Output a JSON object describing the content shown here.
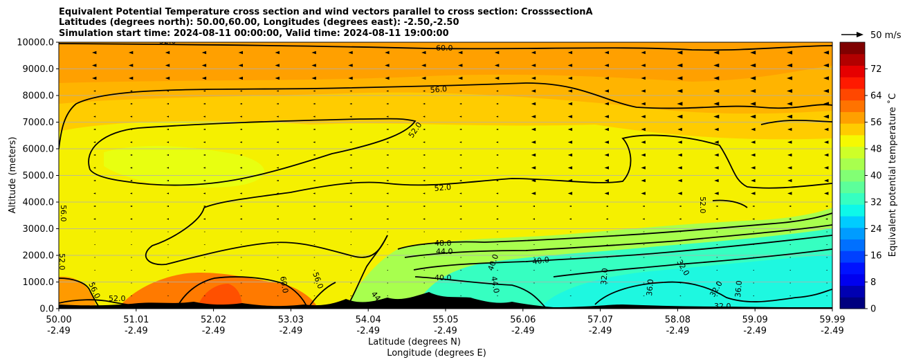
{
  "chart_data": {
    "type": "heatmap",
    "title_lines": [
      "Equivalent Potential Temperature cross section and wind vectors parallel to cross section: CrosssectionA",
      "Latitudes (degrees north): 50.00,60.00, Longitudes (degrees east): -2.50,-2.50",
      "Simulation start time: 2024-08-11 00:00:00, Valid time: 2024-08-11 19:00:00"
    ],
    "xlabel_1": "Latitude (degrees N)",
    "xlabel_2": "Longitude (degrees E)",
    "ylabel": "Altitude (meters)",
    "ylim": [
      0,
      10000
    ],
    "y_ticks": [
      "0.0",
      "1000.0",
      "2000.0",
      "3000.0",
      "4000.0",
      "5000.0",
      "6000.0",
      "7000.0",
      "8000.0",
      "9000.0",
      "10000.0"
    ],
    "x_ticks": [
      {
        "lat": "50.00",
        "lon": "-2.49"
      },
      {
        "lat": "51.01",
        "lon": "-2.49"
      },
      {
        "lat": "52.02",
        "lon": "-2.49"
      },
      {
        "lat": "53.03",
        "lon": "-2.49"
      },
      {
        "lat": "54.04",
        "lon": "-2.49"
      },
      {
        "lat": "55.05",
        "lon": "-2.49"
      },
      {
        "lat": "56.06",
        "lon": "-2.49"
      },
      {
        "lat": "57.07",
        "lon": "-2.49"
      },
      {
        "lat": "58.08",
        "lon": "-2.49"
      },
      {
        "lat": "59.09",
        "lon": "-2.49"
      },
      {
        "lat": "59.99",
        "lon": "-2.49"
      }
    ],
    "grid": "horizontal",
    "colorbar": {
      "label": "Equivalent potential temperature $^\\circ$C",
      "label_display": "Equivalent potential temperature ˚C",
      "range": [
        0,
        80
      ],
      "ticks": [
        "0",
        "8",
        "16",
        "24",
        "32",
        "40",
        "48",
        "56",
        "64",
        "72"
      ],
      "colors": [
        "#00007f",
        "#0000b2",
        "#0000ef",
        "#0012ff",
        "#0040ff",
        "#0070ff",
        "#009cff",
        "#00ccff",
        "#0ef8e9",
        "#36ffc1",
        "#5cff9a",
        "#82ff74",
        "#a8ff4e",
        "#ceff28",
        "#f5f902",
        "#ffcc00",
        "#ffa000",
        "#ff7300",
        "#ff4700",
        "#ff1a00",
        "#e60000",
        "#b20000",
        "#7f0000"
      ]
    },
    "wind_key": "50 m/s",
    "contour_labels": [
      "60.0",
      "56.0",
      "52.0",
      "52.0",
      "52.0",
      "56.0",
      "52.0",
      "52.0",
      "48.0",
      "44.0",
      "40.0",
      "40.0",
      "40.0",
      "44.0",
      "32.0",
      "36.0",
      "32.0",
      "32.0",
      "36.0",
      "32.0",
      "56.0",
      "60.0",
      "56.0",
      "44",
      "52.0"
    ],
    "field_description": "theta_e ~56-62 C aloft (orange), ~48-54 C mid-levels (yellow), 28-44 C low-level cool pool north of 55 N (cyan/green), 58-66 C near-surface warm pocket 51-53 N (orange/red)"
  }
}
